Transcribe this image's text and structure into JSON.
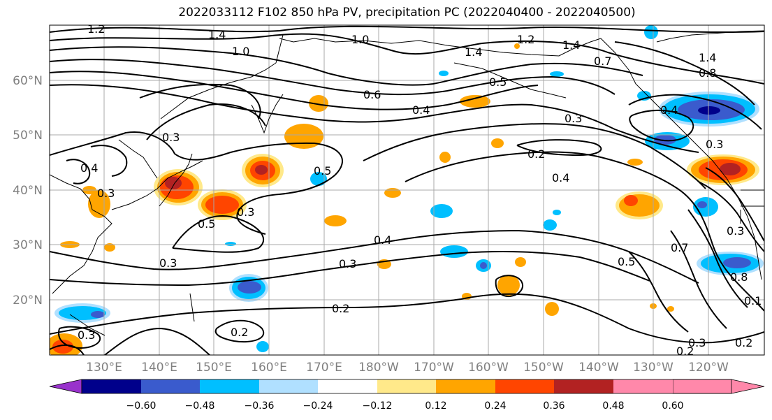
{
  "title": "2022033112 F102 850 hPa PV, precipitation PC (2022040400 - 2022040500)",
  "lat_labels": [
    "60°N",
    "50°N",
    "40°N",
    "30°N",
    "20°N"
  ],
  "lon_labels": [
    "130°E",
    "140°E",
    "150°E",
    "160°E",
    "170°E",
    "180°W",
    "170°W",
    "160°W",
    "150°W",
    "140°W",
    "130°W",
    "120°W"
  ],
  "colorbar": {
    "colors": [
      "#9932cc",
      "#00008b",
      "#3a5bcd",
      "#00bfff",
      "#b0e0ff",
      "#ffffff",
      "#ffe98a",
      "#ffa500",
      "#ff4500",
      "#b22222",
      "#ff88aa"
    ],
    "tick_labels": [
      "−0.60",
      "−0.48",
      "−0.36",
      "−0.24",
      "−0.12",
      "0.12",
      "0.24",
      "0.36",
      "0.48",
      "0.60"
    ]
  },
  "contour_labels": [
    "1.2",
    "1.4",
    "1.0",
    "1.0",
    "1.2",
    "1.4",
    "1.4",
    "1.4",
    "0.7",
    "0.8",
    "0.5",
    "0.6",
    "0.4",
    "0.3",
    "0.4",
    "0.3",
    "0.3",
    "0.4",
    "0.3",
    "0.2",
    "0.5",
    "0.4",
    "0.3",
    "0.5",
    "0.4",
    "0.3",
    "0.2",
    "0.2",
    "0.3",
    "0.5",
    "0.7",
    "0.8",
    "0.1",
    "0.2",
    "0.3",
    "0.2",
    "0.3",
    "0.3"
  ]
}
